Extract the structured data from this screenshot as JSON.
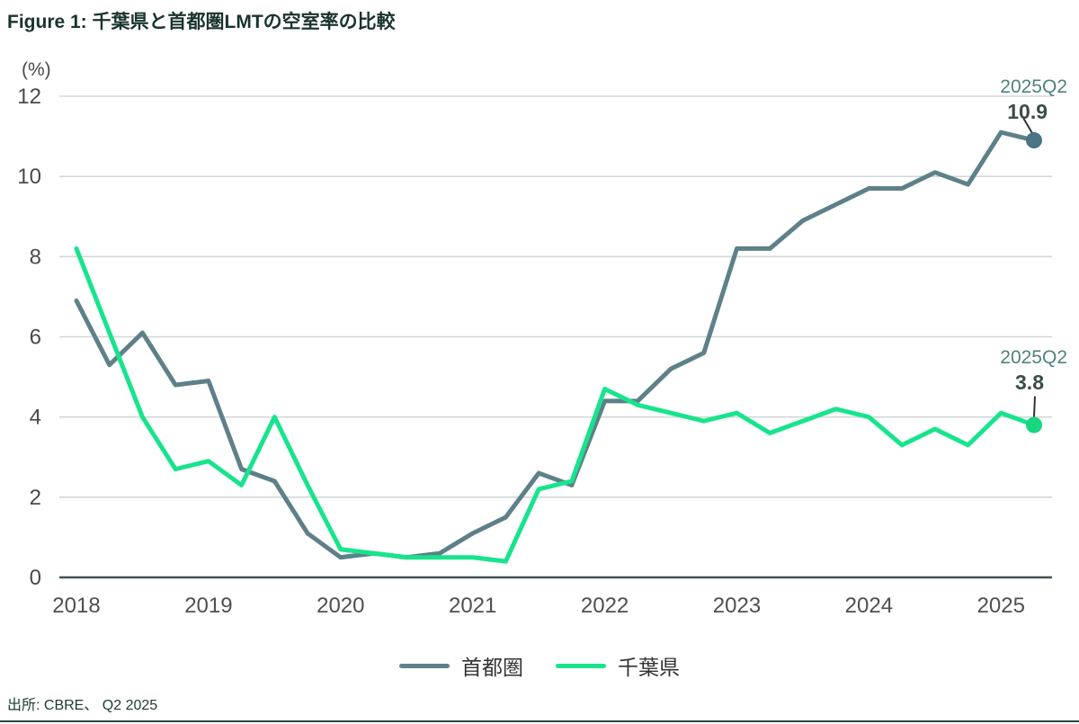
{
  "figure": {
    "title": "Figure 1: 千葉県と首都圏LMTの空室率の比較",
    "y_axis_unit": "(%)",
    "source": "出所: CBRE、 Q2 2025"
  },
  "chart_data": {
    "type": "line",
    "title": "千葉県と首都圏LMTの空室率の比較",
    "x": [
      "2018Q1",
      "2018Q2",
      "2018Q3",
      "2018Q4",
      "2019Q1",
      "2019Q2",
      "2019Q3",
      "2019Q4",
      "2020Q1",
      "2020Q2",
      "2020Q3",
      "2020Q4",
      "2021Q1",
      "2021Q2",
      "2021Q3",
      "2021Q4",
      "2022Q1",
      "2022Q2",
      "2022Q3",
      "2022Q4",
      "2023Q1",
      "2023Q2",
      "2023Q3",
      "2023Q4",
      "2024Q1",
      "2024Q2",
      "2024Q3",
      "2024Q4",
      "2025Q1",
      "2025Q2"
    ],
    "x_tick_labels": [
      "2018",
      "2019",
      "2020",
      "2021",
      "2022",
      "2023",
      "2024",
      "2025"
    ],
    "y_ticks": [
      0,
      2,
      4,
      6,
      8,
      10,
      12
    ],
    "ylim": [
      0,
      12
    ],
    "grid": true,
    "legend_position": "bottom-center",
    "series": [
      {
        "name": "首都圏",
        "color": "#5e8089",
        "marker_color": "#4b7383",
        "values": [
          6.9,
          5.3,
          6.1,
          4.8,
          4.9,
          2.7,
          2.4,
          1.1,
          0.5,
          0.6,
          0.5,
          0.6,
          1.1,
          1.5,
          2.6,
          2.3,
          4.4,
          4.4,
          5.2,
          5.6,
          8.2,
          8.2,
          8.9,
          9.3,
          9.7,
          9.7,
          10.1,
          9.8,
          11.1,
          10.9
        ]
      },
      {
        "name": "千葉県",
        "color": "#17e48c",
        "marker_color": "#16d67f",
        "values": [
          8.2,
          6.1,
          4.0,
          2.7,
          2.9,
          2.3,
          4.0,
          2.3,
          0.7,
          0.6,
          0.5,
          0.5,
          0.5,
          0.4,
          2.2,
          2.4,
          4.7,
          4.3,
          4.1,
          3.9,
          4.1,
          3.6,
          3.9,
          4.2,
          4.0,
          3.3,
          3.7,
          3.3,
          4.1,
          3.8
        ]
      }
    ],
    "annotations": [
      {
        "series": "首都圏",
        "period": "2025Q2",
        "value": "10.9"
      },
      {
        "series": "千葉県",
        "period": "2025Q2",
        "value": "3.8"
      }
    ]
  }
}
